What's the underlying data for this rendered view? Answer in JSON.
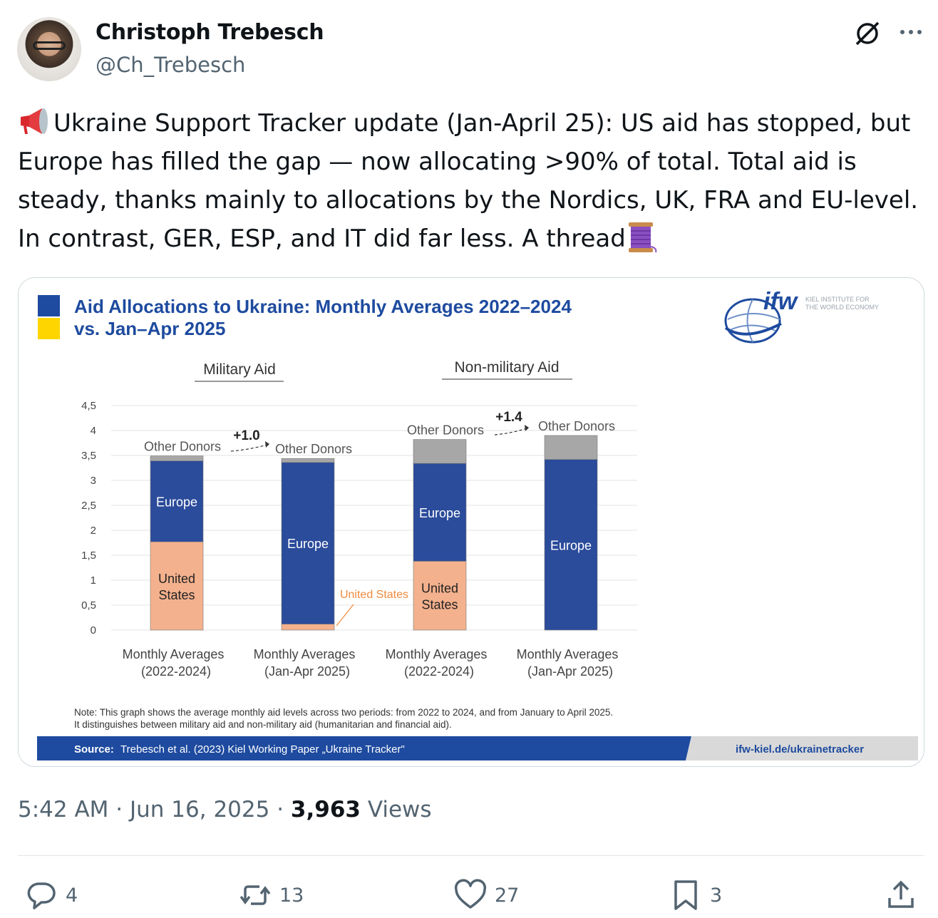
{
  "author": {
    "name": "Christoph Trebesch",
    "handle": "@Ch_Trebesch"
  },
  "tweet": {
    "text": "Ukraine Support Tracker update (Jan-April 25): US aid has stopped, but Europe has filled the gap — now allocating >90% of total. Total aid is steady, thanks mainly to allocations by the Nordics, UK, FRA and EU-level. In contrast, GER, ESP, and IT did far less. A thread"
  },
  "meta": {
    "time": "5:42 AM",
    "date": "Jun 16, 2025",
    "views_count": "3,963",
    "views_label": "Views",
    "sep": "·"
  },
  "actions": {
    "replies": "4",
    "reposts": "13",
    "likes": "27",
    "bookmarks": "3"
  },
  "colors": {
    "ukraine_blue": "#1e4b9f",
    "ukraine_yellow": "#ffd500",
    "europe": "#2b4b9b",
    "us": "#f4b18d",
    "other": "#a7a7a7",
    "us_label": "#ef8a3c"
  },
  "chart_data": {
    "type": "bar",
    "title_line1": "Aid Allocations to Ukraine: Monthly Averages 2022–2024",
    "title_line2": "vs.  Jan–Apr 2025",
    "group_labels": [
      "Military Aid",
      "Non-military Aid"
    ],
    "yticks": [
      "0",
      "0,5",
      "1",
      "1,5",
      "2",
      "2,5",
      "3",
      "3,5",
      "4",
      "4,5"
    ],
    "ylim": [
      0,
      4.5
    ],
    "categories": [
      [
        "Monthly Averages",
        "(2022-2024)"
      ],
      [
        "Monthly Averages",
        "(Jan-Apr 2025)"
      ],
      [
        "Monthly Averages",
        "(2022-2024)"
      ],
      [
        "Monthly Averages",
        "(Jan-Apr 2025)"
      ]
    ],
    "series": [
      {
        "name": "United States",
        "values": [
          1.77,
          0.12,
          1.38,
          0.0
        ]
      },
      {
        "name": "Europe",
        "values": [
          1.62,
          3.24,
          1.96,
          3.42
        ]
      },
      {
        "name": "Other Donors",
        "values": [
          0.1,
          0.08,
          0.48,
          0.48
        ]
      }
    ],
    "segment_labels": {
      "united_states": [
        "United",
        "States"
      ],
      "united_states_inline": "United States",
      "europe": "Europe",
      "other": "Other Donors"
    },
    "annotations": [
      "+1.0",
      "+1.4"
    ],
    "note_line1": "Note: This graph shows the average monthly aid levels across two periods: from 2022 to 2024, and from January to April 2025.",
    "note_line2": "It distinguishes between military aid and non-military aid (humanitarian and financial aid).",
    "source_prefix": "Source:",
    "source_text": "Trebesch et al. (2023) Kiel Working Paper „Ukraine Tracker\"",
    "source_url": "ifw-kiel.de/ukrainetracker",
    "logo": {
      "mark": "ifw",
      "line1": "KIEL INSTITUTE FOR",
      "line2": "THE WORLD ECONOMY"
    }
  }
}
